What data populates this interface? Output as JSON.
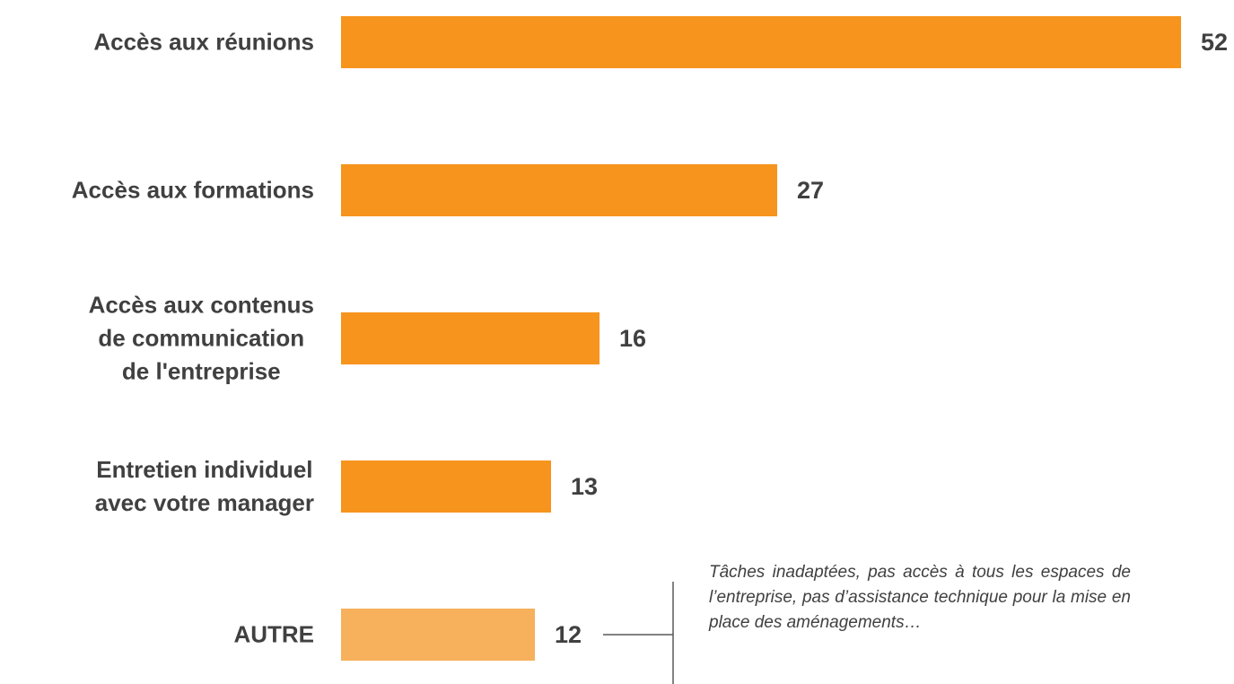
{
  "chart_data": {
    "type": "barh",
    "categories": [
      "Accès aux réunions",
      "Accès aux formations",
      "Accès aux contenus\nde communication\nde l'entreprise",
      "Entretien individuel\navec votre manager",
      "AUTRE"
    ],
    "values": [
      52,
      27,
      16,
      13,
      12
    ],
    "colors": [
      "#F7941D",
      "#F7941D",
      "#F7941D",
      "#F7941D",
      "#F7B05B"
    ],
    "annotation": "Tâches inadaptées, pas accès à tous les espaces de l’entreprise, pas d’assistance technique pour la mise en place des aménagements…"
  }
}
